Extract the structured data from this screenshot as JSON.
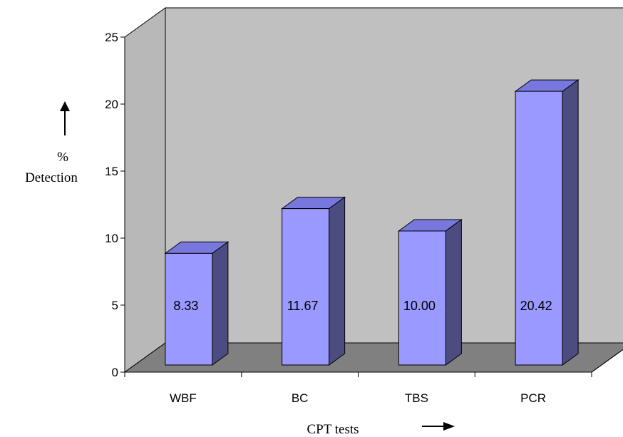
{
  "chart_data": {
    "type": "bar",
    "categories": [
      "WBF",
      "BC",
      "TBS",
      "PCR"
    ],
    "values": [
      8.33,
      11.67,
      10.0,
      20.42
    ],
    "data_labels": [
      "8.33",
      "11.67",
      "10.00",
      "20.42"
    ],
    "ylim": [
      0,
      25
    ],
    "yticks": [
      "0",
      "5",
      "10",
      "15",
      "20",
      "25"
    ],
    "ylabel_symbol": "%",
    "ylabel_text": "Detection",
    "xlabel": "CPT tests",
    "grid": false,
    "legend": "none",
    "colors": {
      "bar_front": "#9999ff",
      "bar_top": "#7777dd",
      "bar_side": "#4c4c80",
      "back_wall": "#c0c0c0",
      "floor": "#808080",
      "side_wall": "#b8b8b8"
    }
  }
}
